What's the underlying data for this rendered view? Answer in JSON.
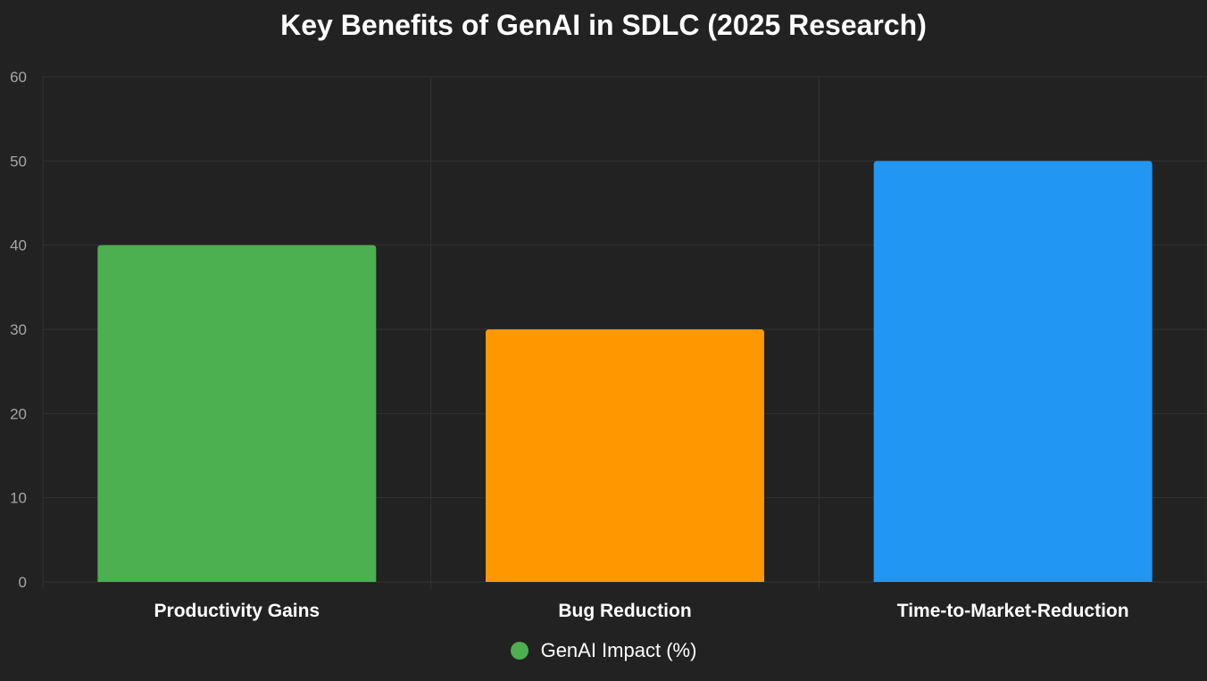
{
  "chart_data": {
    "type": "bar",
    "title": "Key Benefits of GenAI in SDLC (2025 Research)",
    "categories": [
      "Productivity Gains",
      "Bug Reduction",
      "Time-to-Market-Reduction"
    ],
    "series": [
      {
        "name": "GenAI Impact (%)",
        "values": [
          40,
          30,
          50
        ],
        "colors": [
          "#4caf50",
          "#ff9800",
          "#2196f3"
        ]
      }
    ],
    "ylim": [
      0,
      60
    ],
    "yticks": [
      0,
      10,
      20,
      30,
      40,
      50,
      60
    ],
    "grid": true,
    "legend_position": "bottom",
    "xlabel": "",
    "ylabel": ""
  },
  "legend": {
    "label": "GenAI Impact (%)",
    "color": "#4caf50"
  },
  "colors": {
    "background": "#222222",
    "grid": "#333333",
    "title": "#ffffff",
    "y_tick": "#a6a6a6",
    "x_tick": "#ffffff"
  }
}
